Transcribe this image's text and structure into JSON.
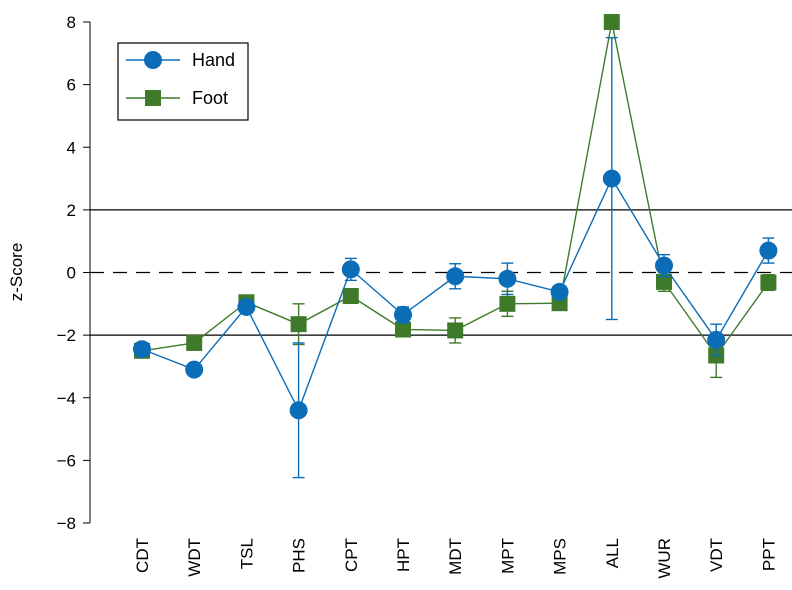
{
  "chart_data": {
    "type": "line",
    "title": "",
    "xlabel": "",
    "ylabel": "z-Score",
    "ylim": [
      -8,
      8
    ],
    "yticks": [
      8,
      6,
      4,
      2,
      0,
      -2,
      -4,
      -6,
      -8
    ],
    "ytick_labels": [
      "8",
      "6",
      "4",
      "2",
      "0",
      "−2",
      "−4",
      "−6",
      "−8"
    ],
    "categories": [
      "CDT",
      "WDT",
      "TSL",
      "PHS",
      "CPT",
      "HPT",
      "MDT",
      "MPT",
      "MPS",
      "ALL",
      "WUR",
      "VDT",
      "PPT"
    ],
    "reference_lines": [
      {
        "y": 2,
        "style": "solid"
      },
      {
        "y": 0,
        "style": "dashed"
      },
      {
        "y": -2,
        "style": "solid"
      }
    ],
    "legend_position": "top-left",
    "series": [
      {
        "name": "Hand",
        "color": "#0b6db8",
        "marker": "circle",
        "values": [
          -2.45,
          -3.1,
          -1.1,
          -4.4,
          0.1,
          -1.35,
          -0.12,
          -0.2,
          -0.62,
          3.0,
          0.22,
          -2.15,
          0.7
        ],
        "err_low": [
          0.2,
          0.2,
          0.15,
          2.15,
          0.35,
          0.25,
          0.4,
          0.5,
          0.2,
          4.5,
          0.35,
          0.5,
          0.4
        ],
        "err_high": [
          0.2,
          0.2,
          0.15,
          2.15,
          0.35,
          0.25,
          0.4,
          0.5,
          0.2,
          4.5,
          0.35,
          0.5,
          0.4
        ]
      },
      {
        "name": "Foot",
        "color": "#3f7a2a",
        "marker": "square",
        "values": [
          -2.5,
          -2.25,
          -0.95,
          -1.65,
          -0.75,
          -1.82,
          -1.85,
          -1.0,
          -0.98,
          8.0,
          -0.3,
          -2.65,
          -0.32
        ],
        "err_low": [
          0.15,
          0.1,
          0.15,
          0.65,
          0.2,
          0.1,
          0.4,
          0.4,
          0.15,
          0.0,
          0.3,
          0.7,
          0.25
        ],
        "err_high": [
          0.15,
          0.1,
          0.15,
          0.65,
          0.2,
          0.1,
          0.4,
          0.4,
          0.15,
          0.0,
          0.3,
          0.7,
          0.25
        ]
      }
    ]
  }
}
